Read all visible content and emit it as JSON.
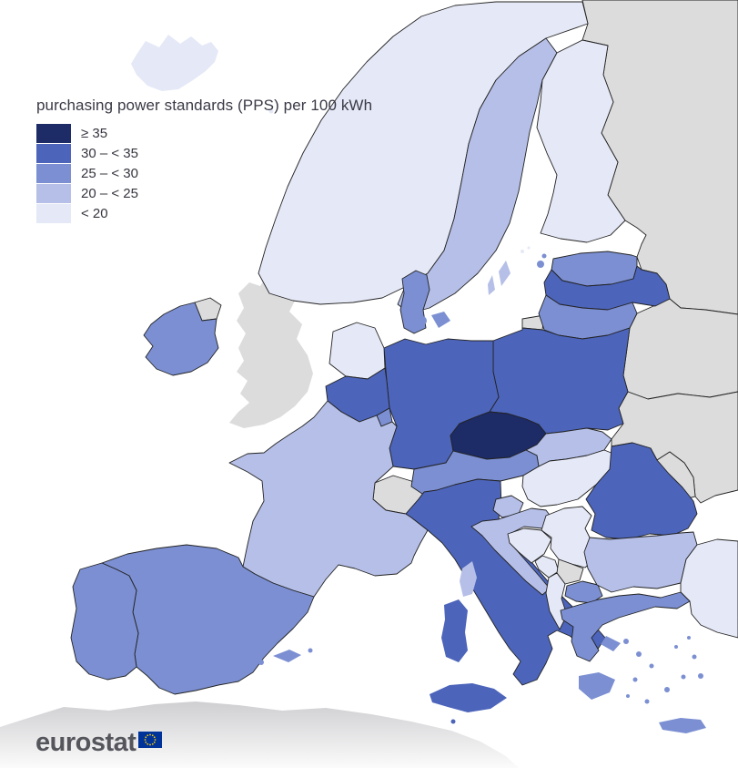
{
  "title": "purchasing power standards (PPS) per 100 kWh",
  "legend": {
    "classes": [
      {
        "id": "c1",
        "label": "≥ 35",
        "color": "#1d2b66"
      },
      {
        "id": "c2",
        "label": "30 – < 35",
        "color": "#4c64ba"
      },
      {
        "id": "c3",
        "label": "25 – < 30",
        "color": "#7b8fd2"
      },
      {
        "id": "c4",
        "label": "20 – < 25",
        "color": "#b5bfe7"
      },
      {
        "id": "c5",
        "label": "< 20",
        "color": "#e5e8f6"
      }
    ],
    "no_data_color": "#dcdcdd",
    "sea_color": "#ffffff",
    "border_color": "#232323"
  },
  "map": {
    "country_classes": {
      "iceland": "c5",
      "faroe-islands": "c5",
      "norway": "c5",
      "sweden": "c4",
      "finland": "c5",
      "denmark": "c3",
      "estonia": "c3",
      "latvia": "c2",
      "lithuania": "c3",
      "poland": "c2",
      "germany": "c2",
      "netherlands": "c5",
      "belgium": "c2",
      "luxembourg": "c3",
      "france": "c4",
      "spain": "c3",
      "portugal": "c3",
      "ireland": "c3",
      "italy": "c2",
      "malta": "c2",
      "czechia": "c1",
      "austria": "c3",
      "slovakia": "c4",
      "hungary": "c5",
      "slovenia": "c4",
      "croatia": "c4",
      "bosnia-herzegovina": "c5",
      "serbia": "c5",
      "montenegro": "c5",
      "albania": "c5",
      "north-macedonia": "c3",
      "greece": "c3",
      "bulgaria": "c4",
      "romania": "c2",
      "turkey": "c5",
      "united-kingdom": "no-data",
      "switzerland": "no-data",
      "russia": "no-data",
      "belarus": "no-data",
      "ukraine": "no-data",
      "moldova": "no-data",
      "kosovo": "no-data"
    }
  },
  "footer": {
    "logo_text": "eurostat"
  }
}
